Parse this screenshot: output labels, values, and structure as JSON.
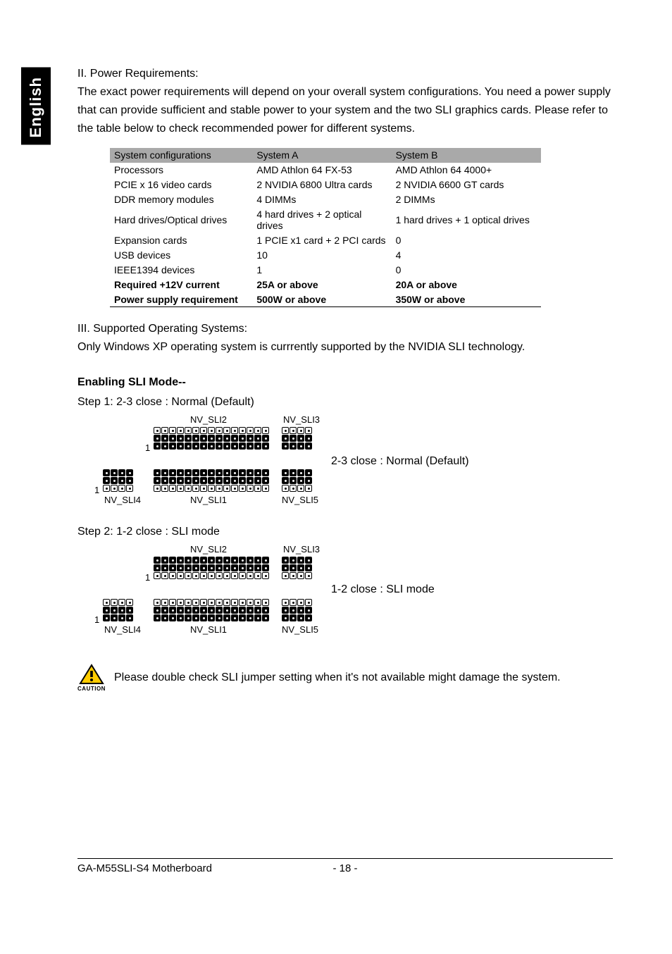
{
  "sideTab": "English",
  "section2": {
    "heading": "II. Power Requirements:",
    "para": "The exact power requirements will depend on your overall system configurations. You need a power supply that can provide sufficient and stable power to your system and the two SLI graphics cards. Please refer to the table below to check recommended power for different systems."
  },
  "table": {
    "headers": [
      "System configurations",
      "System A",
      "System B"
    ],
    "rows": [
      {
        "cells": [
          "Processors",
          "AMD Athlon 64 FX-53",
          "AMD Athlon 64 4000+"
        ],
        "bold": false
      },
      {
        "cells": [
          "PCIE x 16 video cards",
          "2 NVIDIA 6800 Ultra cards",
          "2 NVIDIA 6600 GT cards"
        ],
        "bold": false
      },
      {
        "cells": [
          "DDR memory modules",
          "4 DIMMs",
          "2 DIMMs"
        ],
        "bold": false
      },
      {
        "cells": [
          "Hard drives/Optical drives",
          "4 hard drives + 2 optical drives",
          "1 hard drives + 1 optical drives"
        ],
        "bold": false
      },
      {
        "cells": [
          "Expansion cards",
          "1 PCIE x1 card + 2 PCI cards",
          "0"
        ],
        "bold": false
      },
      {
        "cells": [
          "USB devices",
          "10",
          "4"
        ],
        "bold": false
      },
      {
        "cells": [
          "IEEE1394 devices",
          "1",
          "0"
        ],
        "bold": false
      },
      {
        "cells": [
          "Required +12V current",
          "25A or above",
          "20A or above"
        ],
        "bold": true
      },
      {
        "cells": [
          "Power supply requirement",
          "500W or above",
          "350W or above"
        ],
        "bold": true
      }
    ],
    "headerBg": "#a9a9a9",
    "borderColor": "#000000"
  },
  "section3": {
    "heading": "III. Supported Operating Systems:",
    "para": "Only Windows XP operating system is currrently supported by the NVIDIA SLI technology."
  },
  "enabling": {
    "heading": "Enabling SLI Mode--",
    "step1": "Step 1:  2-3 close : Normal (Default)",
    "caption1": "2-3 close : Normal (Default)",
    "step2": "Step 2:  1-2 close : SLI mode",
    "caption2": "1-2 close : SLI mode"
  },
  "jumperLabels": {
    "sli1": "NV_SLI1",
    "sli2": "NV_SLI2",
    "sli3": "NV_SLI3",
    "sli4": "NV_SLI4",
    "sli5": "NV_SLI5",
    "pin1": "1"
  },
  "jumperDiagram": {
    "mode1": {
      "description": "2-3 close (Normal/Default) - rows 2 and 3 jumpered",
      "longBlockCols": 15,
      "shortBlockCols": 4,
      "rows": 3,
      "filledRowsTop": [
        1,
        2
      ],
      "filledRowsBottom": [
        0,
        1
      ]
    },
    "mode2": {
      "description": "1-2 close (SLI mode) - rows 1 and 2 jumpered",
      "longBlockCols": 15,
      "shortBlockCols": 4,
      "rows": 3,
      "filledRowsTop": [
        0,
        1
      ],
      "filledRowsBottom": [
        1,
        2
      ]
    },
    "pinStyle": {
      "size": 10,
      "gap": 1,
      "borderColor": "#000000",
      "emptyBg": "#ffffff",
      "filledBg": "#000000",
      "borderRadius": 2
    }
  },
  "caution": {
    "label": "CAUTION",
    "text": "Please double check SLI jumper setting when it's not available might damage the system.",
    "iconStroke": "#000000",
    "iconFill": "#ffcc00"
  },
  "footer": {
    "left": "GA-M55SLI-S4 Motherboard",
    "center": "- 18 -"
  },
  "colors": {
    "pageBg": "#ffffff",
    "text": "#000000",
    "sideTabBg": "#000000",
    "sideTabText": "#ffffff"
  },
  "typography": {
    "bodyFontSize": 16,
    "tableFontSize": 14,
    "labelFontSize": 13,
    "footerFontSize": 15,
    "fontFamily": "Arial, Helvetica, sans-serif"
  }
}
